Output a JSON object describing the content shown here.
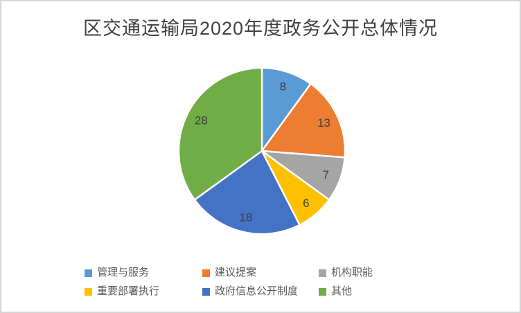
{
  "chart_data": {
    "type": "pie",
    "title": "区交通运输局2020年度政务公开总体情况",
    "labels": [
      "管理与服务",
      "建议提案",
      "机构职能",
      "重要部署执行",
      "政府信息公开制度",
      "其他"
    ],
    "values": [
      8,
      13,
      7,
      6,
      18,
      28
    ],
    "data_labels": [
      "8",
      "13",
      "7",
      "6",
      "18",
      "28"
    ],
    "colors": [
      "#5B9BD5",
      "#ED7D31",
      "#A5A5A5",
      "#FFC000",
      "#4472C4",
      "#70AD47"
    ],
    "total": 80,
    "start_angle_deg": 0,
    "direction": "clockwise",
    "slice_border_color": "#ffffff",
    "legend_position": "bottom",
    "legend_rows": 2,
    "grid": "off"
  },
  "frame": {
    "background_color": "#ffffff",
    "border_color": "#d6d6d6",
    "title_color": "#404040",
    "label_color": "#404040",
    "legend_text_color": "#595959"
  }
}
